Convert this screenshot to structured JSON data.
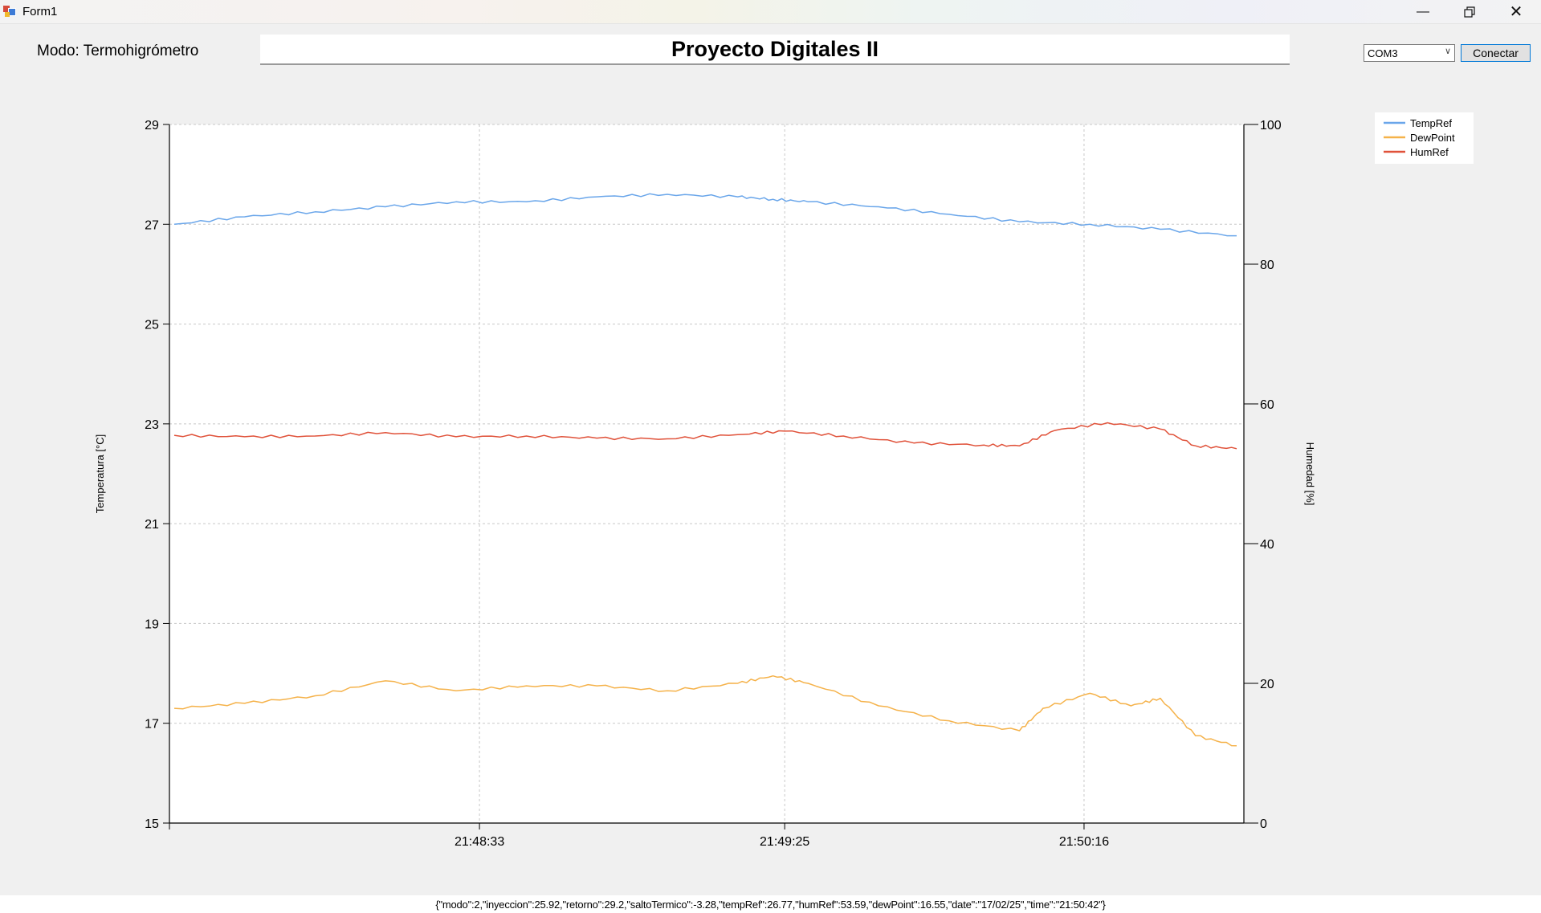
{
  "window": {
    "title": "Form1",
    "minimize_icon": "minimize-icon",
    "restore_icon": "restore-icon",
    "close_icon": "close-icon"
  },
  "mode_label": "Modo: Termohigrómetro",
  "header": {
    "title": "Proyecto Digitales II"
  },
  "controls": {
    "port_value": "COM3",
    "connect_label": "Conectar"
  },
  "status_line": "{\"modo\":2,\"inyeccion\":25.92,\"retorno\":29.2,\"saltoTermico\":-3.28,\"tempRef\":26.77,\"humRef\":53.59,\"dewPoint\":16.55,\"date\":\"17/02/25\",\"time\":\"21:50:42\"}",
  "chart_data": {
    "type": "line",
    "ylabel": "Temperatura [°C]",
    "y2label": "Humedad [%]",
    "ylim": [
      15,
      29
    ],
    "y_ticks": [
      15,
      17,
      19,
      21,
      23,
      25,
      27,
      29
    ],
    "y2lim": [
      0,
      100
    ],
    "y2_ticks": [
      0,
      20,
      40,
      60,
      80,
      100
    ],
    "xlim": [
      "21:47:41",
      "21:50:42"
    ],
    "x_tick_labels": [
      "21:48:33",
      "21:49:25",
      "21:50:16"
    ],
    "grid": true,
    "legend_position": "top-right",
    "series": [
      {
        "name": "TempRef",
        "axis": "left",
        "color": "#6aa6ea",
        "times": [
          "21:47:41",
          "21:47:53",
          "21:48:05",
          "21:48:17",
          "21:48:29",
          "21:48:41",
          "21:48:53",
          "21:49:05",
          "21:49:17",
          "21:49:23",
          "21:49:29",
          "21:49:41",
          "21:49:53",
          "21:50:05",
          "21:50:17",
          "21:50:29",
          "21:50:42"
        ],
        "values": [
          27.0,
          27.15,
          27.25,
          27.35,
          27.45,
          27.45,
          27.55,
          27.6,
          27.55,
          27.5,
          27.45,
          27.35,
          27.2,
          27.05,
          27.0,
          26.9,
          26.77
        ]
      },
      {
        "name": "DewPoint",
        "axis": "left",
        "color": "#f5b24a",
        "times": [
          "21:47:41",
          "21:47:53",
          "21:48:05",
          "21:48:17",
          "21:48:29",
          "21:48:41",
          "21:48:53",
          "21:49:05",
          "21:49:17",
          "21:49:23",
          "21:49:29",
          "21:49:41",
          "21:49:53",
          "21:50:05",
          "21:50:09",
          "21:50:17",
          "21:50:24",
          "21:50:29",
          "21:50:35",
          "21:50:42"
        ],
        "values": [
          17.3,
          17.4,
          17.55,
          17.85,
          17.65,
          17.75,
          17.75,
          17.65,
          17.8,
          17.95,
          17.8,
          17.35,
          17.05,
          16.85,
          17.3,
          17.6,
          17.35,
          17.5,
          16.75,
          16.55
        ]
      },
      {
        "name": "HumRef",
        "axis": "right",
        "color": "#e0523a",
        "times": [
          "21:47:41",
          "21:47:53",
          "21:48:05",
          "21:48:17",
          "21:48:29",
          "21:48:41",
          "21:48:53",
          "21:49:05",
          "21:49:17",
          "21:49:25",
          "21:49:35",
          "21:49:47",
          "21:49:59",
          "21:50:05",
          "21:50:11",
          "21:50:20",
          "21:50:29",
          "21:50:35",
          "21:50:42"
        ],
        "values": [
          55.5,
          55.3,
          55.4,
          55.9,
          55.3,
          55.4,
          55.1,
          55.0,
          55.6,
          56.1,
          55.4,
          54.4,
          54.1,
          54.0,
          56.2,
          57.3,
          56.4,
          54.0,
          53.59
        ]
      }
    ]
  }
}
